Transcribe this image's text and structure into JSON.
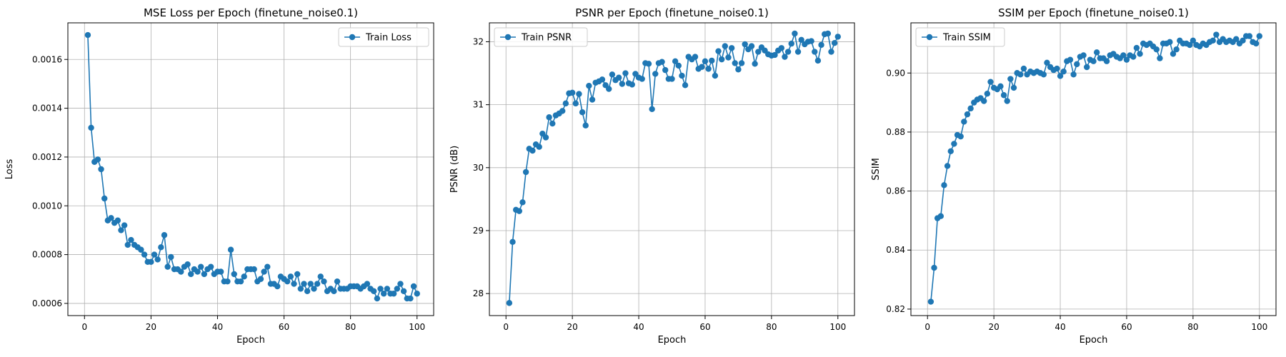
{
  "chart_data": [
    {
      "type": "line",
      "title": "MSE Loss per Epoch (finetune_noise0.1)",
      "xlabel": "Epoch",
      "ylabel": "Loss",
      "xlim": [
        -5,
        105
      ],
      "ylim": [
        0.00055,
        0.00175
      ],
      "xticks": [
        0,
        20,
        40,
        60,
        80,
        100
      ],
      "xtick_labels": [
        "0",
        "20",
        "40",
        "60",
        "80",
        "100"
      ],
      "yticks": [
        0.0006,
        0.0008,
        0.001,
        0.0012,
        0.0014,
        0.0016
      ],
      "ytick_labels": [
        "0.0006",
        "0.0008",
        "0.0010",
        "0.0012",
        "0.0014",
        "0.0016"
      ],
      "grid": true,
      "legend_position": "top-right",
      "color": "#1f77b4",
      "series": [
        {
          "name": "Train Loss",
          "x": [
            1,
            2,
            3,
            4,
            5,
            6,
            7,
            8,
            9,
            10,
            11,
            12,
            13,
            14,
            15,
            16,
            17,
            18,
            19,
            20,
            21,
            22,
            23,
            24,
            25,
            26,
            27,
            28,
            29,
            30,
            31,
            32,
            33,
            34,
            35,
            36,
            37,
            38,
            39,
            40,
            41,
            42,
            43,
            44,
            45,
            46,
            47,
            48,
            49,
            50,
            51,
            52,
            53,
            54,
            55,
            56,
            57,
            58,
            59,
            60,
            61,
            62,
            63,
            64,
            65,
            66,
            67,
            68,
            69,
            70,
            71,
            72,
            73,
            74,
            75,
            76,
            77,
            78,
            79,
            80,
            81,
            82,
            83,
            84,
            85,
            86,
            87,
            88,
            89,
            90,
            91,
            92,
            93,
            94,
            95,
            96,
            97,
            98,
            99,
            100
          ],
          "values": [
            0.0017,
            0.00132,
            0.00118,
            0.00119,
            0.00115,
            0.00103,
            0.00094,
            0.00095,
            0.00093,
            0.00094,
            0.0009,
            0.00092,
            0.00084,
            0.00086,
            0.00084,
            0.00083,
            0.00082,
            0.0008,
            0.00077,
            0.00077,
            0.0008,
            0.00078,
            0.00083,
            0.00088,
            0.00075,
            0.00079,
            0.00074,
            0.00074,
            0.00073,
            0.00075,
            0.00076,
            0.00072,
            0.00074,
            0.00073,
            0.00075,
            0.00072,
            0.00074,
            0.00075,
            0.00072,
            0.00073,
            0.00073,
            0.00069,
            0.00069,
            0.00082,
            0.00072,
            0.00069,
            0.00069,
            0.00071,
            0.00074,
            0.00074,
            0.00074,
            0.00069,
            0.0007,
            0.00073,
            0.00075,
            0.00068,
            0.00068,
            0.00067,
            0.00071,
            0.0007,
            0.00069,
            0.00071,
            0.00068,
            0.00072,
            0.00066,
            0.00068,
            0.00065,
            0.00068,
            0.00066,
            0.00068,
            0.00071,
            0.00069,
            0.00065,
            0.00066,
            0.00065,
            0.00069,
            0.00066,
            0.00066,
            0.00066,
            0.00067,
            0.00067,
            0.00067,
            0.00066,
            0.00067,
            0.00068,
            0.00066,
            0.00065,
            0.00062,
            0.00066,
            0.00064,
            0.00066,
            0.00064,
            0.00064,
            0.00066,
            0.00068,
            0.00065,
            0.00062,
            0.00062,
            0.00067,
            0.00064
          ]
        }
      ]
    },
    {
      "type": "line",
      "title": "PSNR per Epoch (finetune_noise0.1)",
      "xlabel": "Epoch",
      "ylabel": "PSNR (dB)",
      "xlim": [
        -5,
        105
      ],
      "ylim": [
        27.65,
        32.3
      ],
      "xticks": [
        0,
        20,
        40,
        60,
        80,
        100
      ],
      "xtick_labels": [
        "0",
        "20",
        "40",
        "60",
        "80",
        "100"
      ],
      "yticks": [
        28,
        29,
        30,
        31,
        32
      ],
      "ytick_labels": [
        "28",
        "29",
        "30",
        "31",
        "32"
      ],
      "grid": true,
      "legend_position": "top-left",
      "color": "#1f77b4",
      "series": [
        {
          "name": "Train PSNR",
          "x": [
            1,
            2,
            3,
            4,
            5,
            6,
            7,
            8,
            9,
            10,
            11,
            12,
            13,
            14,
            15,
            16,
            17,
            18,
            19,
            20,
            21,
            22,
            23,
            24,
            25,
            26,
            27,
            28,
            29,
            30,
            31,
            32,
            33,
            34,
            35,
            36,
            37,
            38,
            39,
            40,
            41,
            42,
            43,
            44,
            45,
            46,
            47,
            48,
            49,
            50,
            51,
            52,
            53,
            54,
            55,
            56,
            57,
            58,
            59,
            60,
            61,
            62,
            63,
            64,
            65,
            66,
            67,
            68,
            69,
            70,
            71,
            72,
            73,
            74,
            75,
            76,
            77,
            78,
            79,
            80,
            81,
            82,
            83,
            84,
            85,
            86,
            87,
            88,
            89,
            90,
            91,
            92,
            93,
            94,
            95,
            96,
            97,
            98,
            99,
            100
          ],
          "values": [
            27.85,
            28.82,
            29.33,
            29.31,
            29.45,
            29.93,
            30.3,
            30.27,
            30.37,
            30.33,
            30.54,
            30.48,
            30.8,
            30.7,
            30.83,
            30.86,
            30.9,
            31.02,
            31.18,
            31.19,
            31.02,
            31.17,
            30.88,
            30.67,
            31.3,
            31.08,
            31.35,
            31.37,
            31.4,
            31.31,
            31.25,
            31.48,
            31.39,
            31.43,
            31.33,
            31.5,
            31.34,
            31.32,
            31.49,
            31.43,
            31.41,
            31.66,
            31.65,
            30.93,
            31.49,
            31.66,
            31.68,
            31.55,
            31.41,
            31.41,
            31.69,
            31.62,
            31.46,
            31.31,
            31.76,
            31.72,
            31.76,
            31.57,
            31.6,
            31.69,
            31.57,
            31.7,
            31.46,
            31.85,
            31.72,
            31.93,
            31.75,
            31.9,
            31.66,
            31.56,
            31.66,
            31.96,
            31.88,
            31.93,
            31.65,
            31.84,
            31.91,
            31.86,
            31.8,
            31.78,
            31.79,
            31.86,
            31.9,
            31.76,
            31.84,
            31.97,
            32.13,
            31.84,
            32.03,
            31.96,
            32.0,
            32.01,
            31.84,
            31.7,
            31.95,
            32.12,
            32.13,
            31.84,
            31.98,
            32.08
          ]
        }
      ]
    },
    {
      "type": "line",
      "title": "SSIM per Epoch (finetune_noise0.1)",
      "xlabel": "Epoch",
      "ylabel": "SSIM",
      "xlim": [
        -5,
        105
      ],
      "ylim": [
        0.8178,
        0.917
      ],
      "xticks": [
        0,
        20,
        40,
        60,
        80,
        100
      ],
      "xtick_labels": [
        "0",
        "20",
        "40",
        "60",
        "80",
        "100"
      ],
      "yticks": [
        0.82,
        0.84,
        0.86,
        0.88,
        0.9
      ],
      "ytick_labels": [
        "0.82",
        "0.84",
        "0.86",
        "0.88",
        "0.90"
      ],
      "grid": true,
      "legend_position": "top-left",
      "color": "#1f77b4",
      "series": [
        {
          "name": "Train SSIM",
          "x": [
            1,
            2,
            3,
            4,
            5,
            6,
            7,
            8,
            9,
            10,
            11,
            12,
            13,
            14,
            15,
            16,
            17,
            18,
            19,
            20,
            21,
            22,
            23,
            24,
            25,
            26,
            27,
            28,
            29,
            30,
            31,
            32,
            33,
            34,
            35,
            36,
            37,
            38,
            39,
            40,
            41,
            42,
            43,
            44,
            45,
            46,
            47,
            48,
            49,
            50,
            51,
            52,
            53,
            54,
            55,
            56,
            57,
            58,
            59,
            60,
            61,
            62,
            63,
            64,
            65,
            66,
            67,
            68,
            69,
            70,
            71,
            72,
            73,
            74,
            75,
            76,
            77,
            78,
            79,
            80,
            81,
            82,
            83,
            84,
            85,
            86,
            87,
            88,
            89,
            90,
            91,
            92,
            93,
            94,
            95,
            96,
            97,
            98,
            99,
            100
          ],
          "values": [
            0.8225,
            0.834,
            0.8508,
            0.8515,
            0.862,
            0.8685,
            0.8735,
            0.876,
            0.879,
            0.8785,
            0.8835,
            0.886,
            0.888,
            0.89,
            0.891,
            0.8915,
            0.8905,
            0.893,
            0.897,
            0.895,
            0.8945,
            0.8955,
            0.8925,
            0.8905,
            0.898,
            0.895,
            0.9,
            0.8995,
            0.9015,
            0.8995,
            0.9005,
            0.9,
            0.9005,
            0.9,
            0.8995,
            0.9035,
            0.902,
            0.901,
            0.9015,
            0.899,
            0.9005,
            0.904,
            0.9045,
            0.8995,
            0.903,
            0.9055,
            0.906,
            0.902,
            0.9045,
            0.904,
            0.907,
            0.905,
            0.905,
            0.904,
            0.906,
            0.9065,
            0.9055,
            0.905,
            0.906,
            0.9045,
            0.906,
            0.9055,
            0.9085,
            0.9065,
            0.91,
            0.9095,
            0.91,
            0.909,
            0.908,
            0.905,
            0.91,
            0.91,
            0.9105,
            0.9065,
            0.908,
            0.911,
            0.91,
            0.91,
            0.9095,
            0.911,
            0.9095,
            0.909,
            0.91,
            0.9095,
            0.9105,
            0.911,
            0.913,
            0.9105,
            0.9115,
            0.9105,
            0.911,
            0.9105,
            0.9115,
            0.91,
            0.911,
            0.9125,
            0.9125,
            0.9105,
            0.91,
            0.9125
          ]
        }
      ]
    }
  ]
}
